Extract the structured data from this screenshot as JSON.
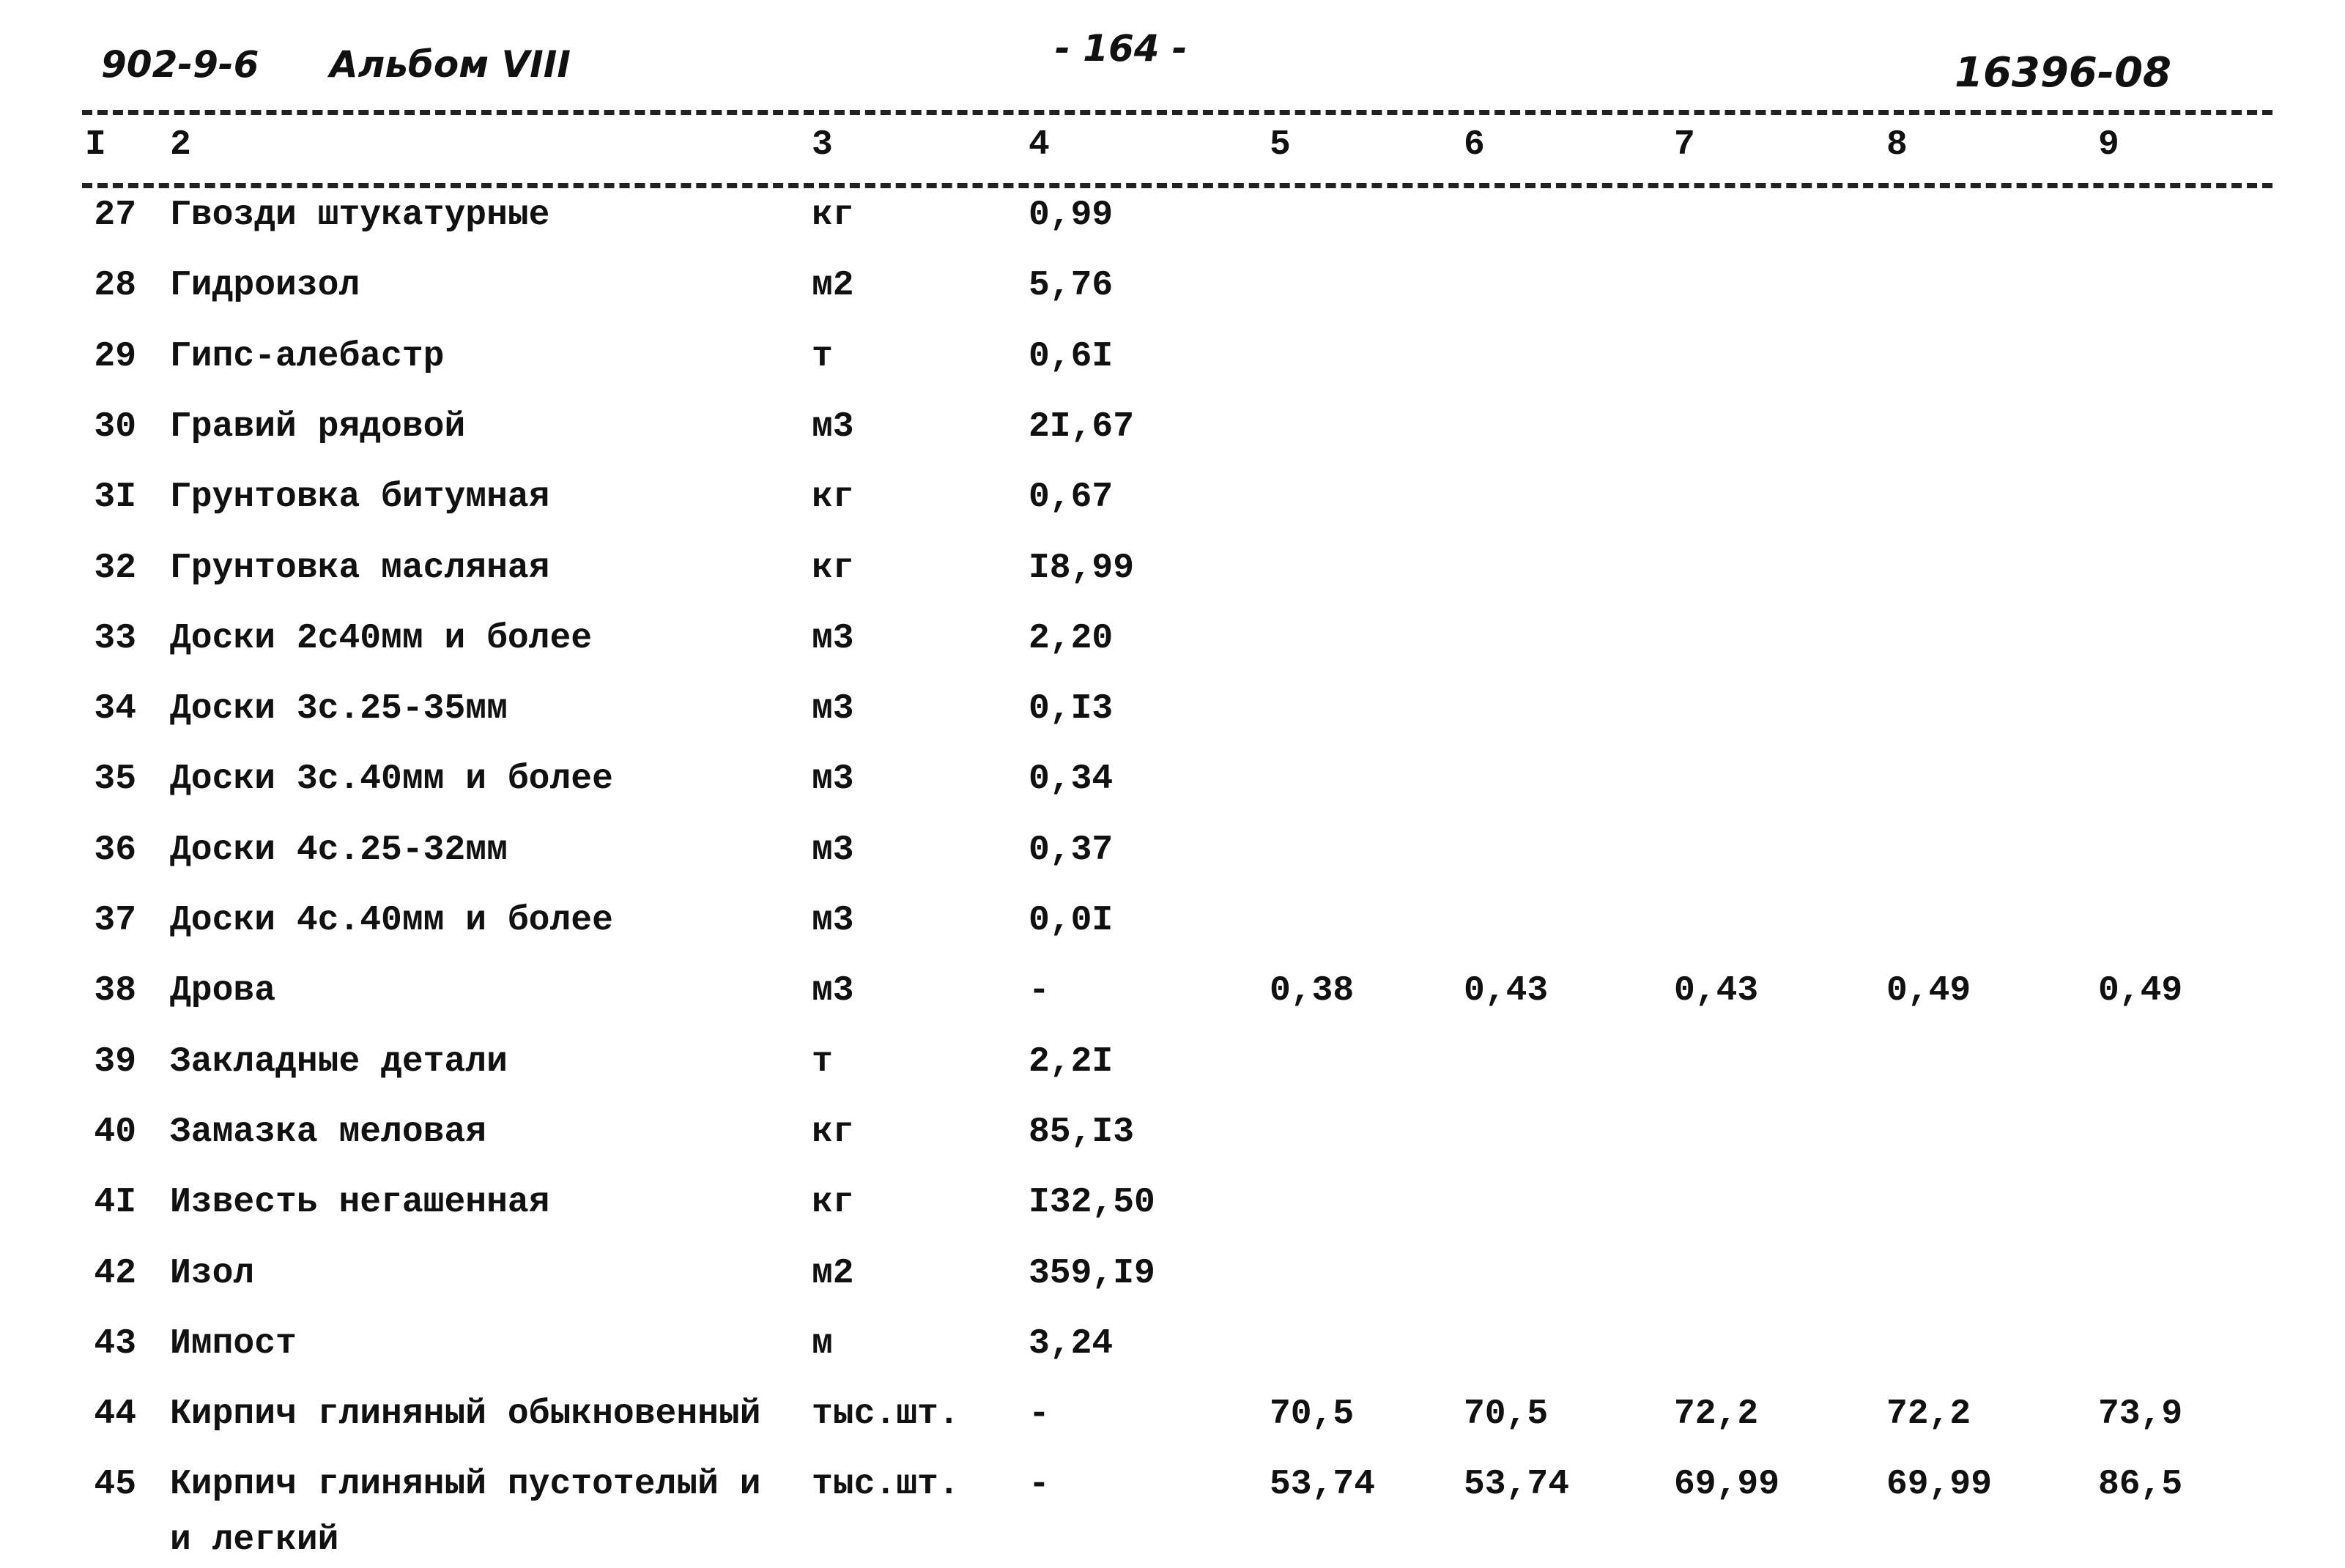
{
  "header": {
    "code": "902-9-6",
    "album": "Альбом VIII",
    "page": "- 164 -",
    "number": "16396-08"
  },
  "table": {
    "columns": [
      "I",
      "2",
      "3",
      "4",
      "5",
      "6",
      "7",
      "8",
      "9"
    ],
    "rows": [
      [
        "27",
        "Гвозди штукатурные",
        "кг",
        "0,99"
      ],
      [
        "28",
        "Гидроизол",
        "м2",
        "5,76"
      ],
      [
        "29",
        "Гипс-алебастр",
        "т",
        "0,6I"
      ],
      [
        "30",
        "Гравий рядовой",
        "м3",
        "2I,67"
      ],
      [
        "3I",
        "Грунтовка битумная",
        "кг",
        "0,67"
      ],
      [
        "32",
        "Грунтовка масляная",
        "кг",
        "I8,99"
      ],
      [
        "33",
        "Доски 2с40мм и более",
        "м3",
        "2,20"
      ],
      [
        "34",
        "Доски 3с.25-35мм",
        "м3",
        "0,I3"
      ],
      [
        "35",
        "Доски 3с.40мм и более",
        "м3",
        "0,34"
      ],
      [
        "36",
        "Доски 4с.25-32мм",
        "м3",
        "0,37"
      ],
      [
        "37",
        "Доски 4с.40мм и более",
        "м3",
        "0,0I"
      ],
      [
        "38",
        "Дрова",
        "м3",
        "-",
        "0,38",
        "0,43",
        "0,43",
        "0,49",
        "0,49"
      ],
      [
        "39",
        "Закладные детали",
        "т",
        "2,2I"
      ],
      [
        "40",
        "Замазка меловая",
        "кг",
        "85,I3"
      ],
      [
        "4I",
        "Известь негашенная",
        "кг",
        "I32,50"
      ],
      [
        "42",
        "Изол",
        "м2",
        "359,I9"
      ],
      [
        "43",
        "Импост",
        "м",
        "3,24"
      ],
      [
        "44",
        "Кирпич глиняный обыкновенный",
        "тыс.шт.",
        "-",
        "70,5",
        "70,5",
        "72,2",
        "72,2",
        "73,9"
      ],
      [
        "45",
        "Кирпич глиняный пустотелый и\nи легкий",
        "тыс.шт.",
        "-",
        "53,74",
        "53,74",
        "69,99",
        "69,99",
        "86,5"
      ]
    ]
  }
}
